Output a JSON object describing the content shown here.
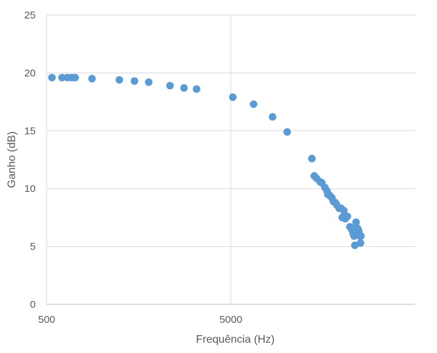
{
  "chart_data": {
    "type": "scatter",
    "title": "",
    "xlabel": "Frequência (Hz)",
    "ylabel": "Ganho (dB)",
    "xscale": "log",
    "xlim": [
      500,
      50000
    ],
    "ylim": [
      0,
      25
    ],
    "xticks": [
      500,
      5000
    ],
    "xtick_labels": [
      "500",
      "5000"
    ],
    "yticks": [
      0,
      5,
      10,
      15,
      20,
      25
    ],
    "ytick_labels": [
      "0",
      "5",
      "10",
      "15",
      "20",
      "25"
    ],
    "grid": "major",
    "legend": "none",
    "marker_color": "#5b9bd5",
    "series": [
      {
        "x": [
          534,
          606,
          649,
          685,
          714,
          881,
          1240,
          1498,
          1791,
          2336,
          2784,
          3257,
          5128,
          6639,
          8422,
          10112,
          13770,
          14176,
          14568,
          15251,
          15609,
          16201,
          16633,
          16791,
          17240,
          17691,
          18008,
          18446,
          18781,
          19348,
          19812,
          20104,
          20518,
          20929,
          21448,
          22143,
          22492,
          22781,
          23063,
          23325,
          23561,
          23910,
          23886,
          24232,
          24545,
          24732,
          25007,
          25293,
          25413
        ],
        "y": [
          19.6,
          19.6,
          19.6,
          19.6,
          19.6,
          19.5,
          19.4,
          19.3,
          19.2,
          18.9,
          18.7,
          18.6,
          17.9,
          17.3,
          16.2,
          14.9,
          12.6,
          11.1,
          10.9,
          10.6,
          10.5,
          10.1,
          9.8,
          9.5,
          9.4,
          9.2,
          8.9,
          8.8,
          8.6,
          8.3,
          8.3,
          7.5,
          8.1,
          7.4,
          7.6,
          6.7,
          6.6,
          6.4,
          6.1,
          5.9,
          5.1,
          7.1,
          6.6,
          6.6,
          6.5,
          6.3,
          5.9,
          5.3,
          5.9
        ]
      }
    ]
  }
}
